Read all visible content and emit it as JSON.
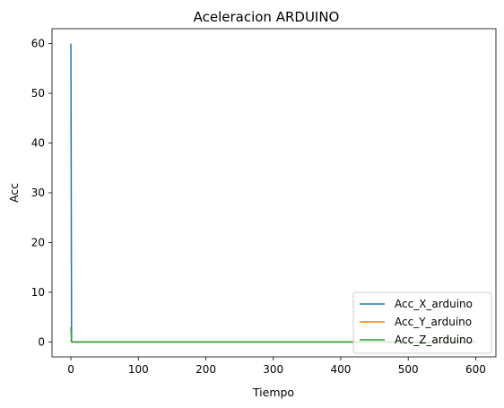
{
  "chart_data": {
    "type": "line",
    "title": "Aceleracion ARDUINO",
    "xlabel": "Tiempo",
    "ylabel": "Acc",
    "xlim": [
      -28,
      630
    ],
    "ylim": [
      -3,
      63
    ],
    "xticks": [
      0,
      100,
      200,
      300,
      400,
      500,
      600
    ],
    "yticks": [
      0,
      10,
      20,
      30,
      40,
      50,
      60
    ],
    "grid": false,
    "legend_position": "lower-right",
    "series": [
      {
        "name": "Acc_X_arduino",
        "color": "#1f77b4",
        "x": [
          0,
          1,
          2,
          600
        ],
        "y": [
          60,
          0,
          0,
          0
        ]
      },
      {
        "name": "Acc_Y_arduino",
        "color": "#ff7f0e",
        "x": [
          0,
          1,
          2,
          600
        ],
        "y": [
          0.5,
          0,
          0,
          0
        ]
      },
      {
        "name": "Acc_Z_arduino",
        "color": "#2ca02c",
        "x": [
          0,
          1,
          2,
          600
        ],
        "y": [
          3,
          0,
          0,
          0
        ]
      }
    ]
  }
}
